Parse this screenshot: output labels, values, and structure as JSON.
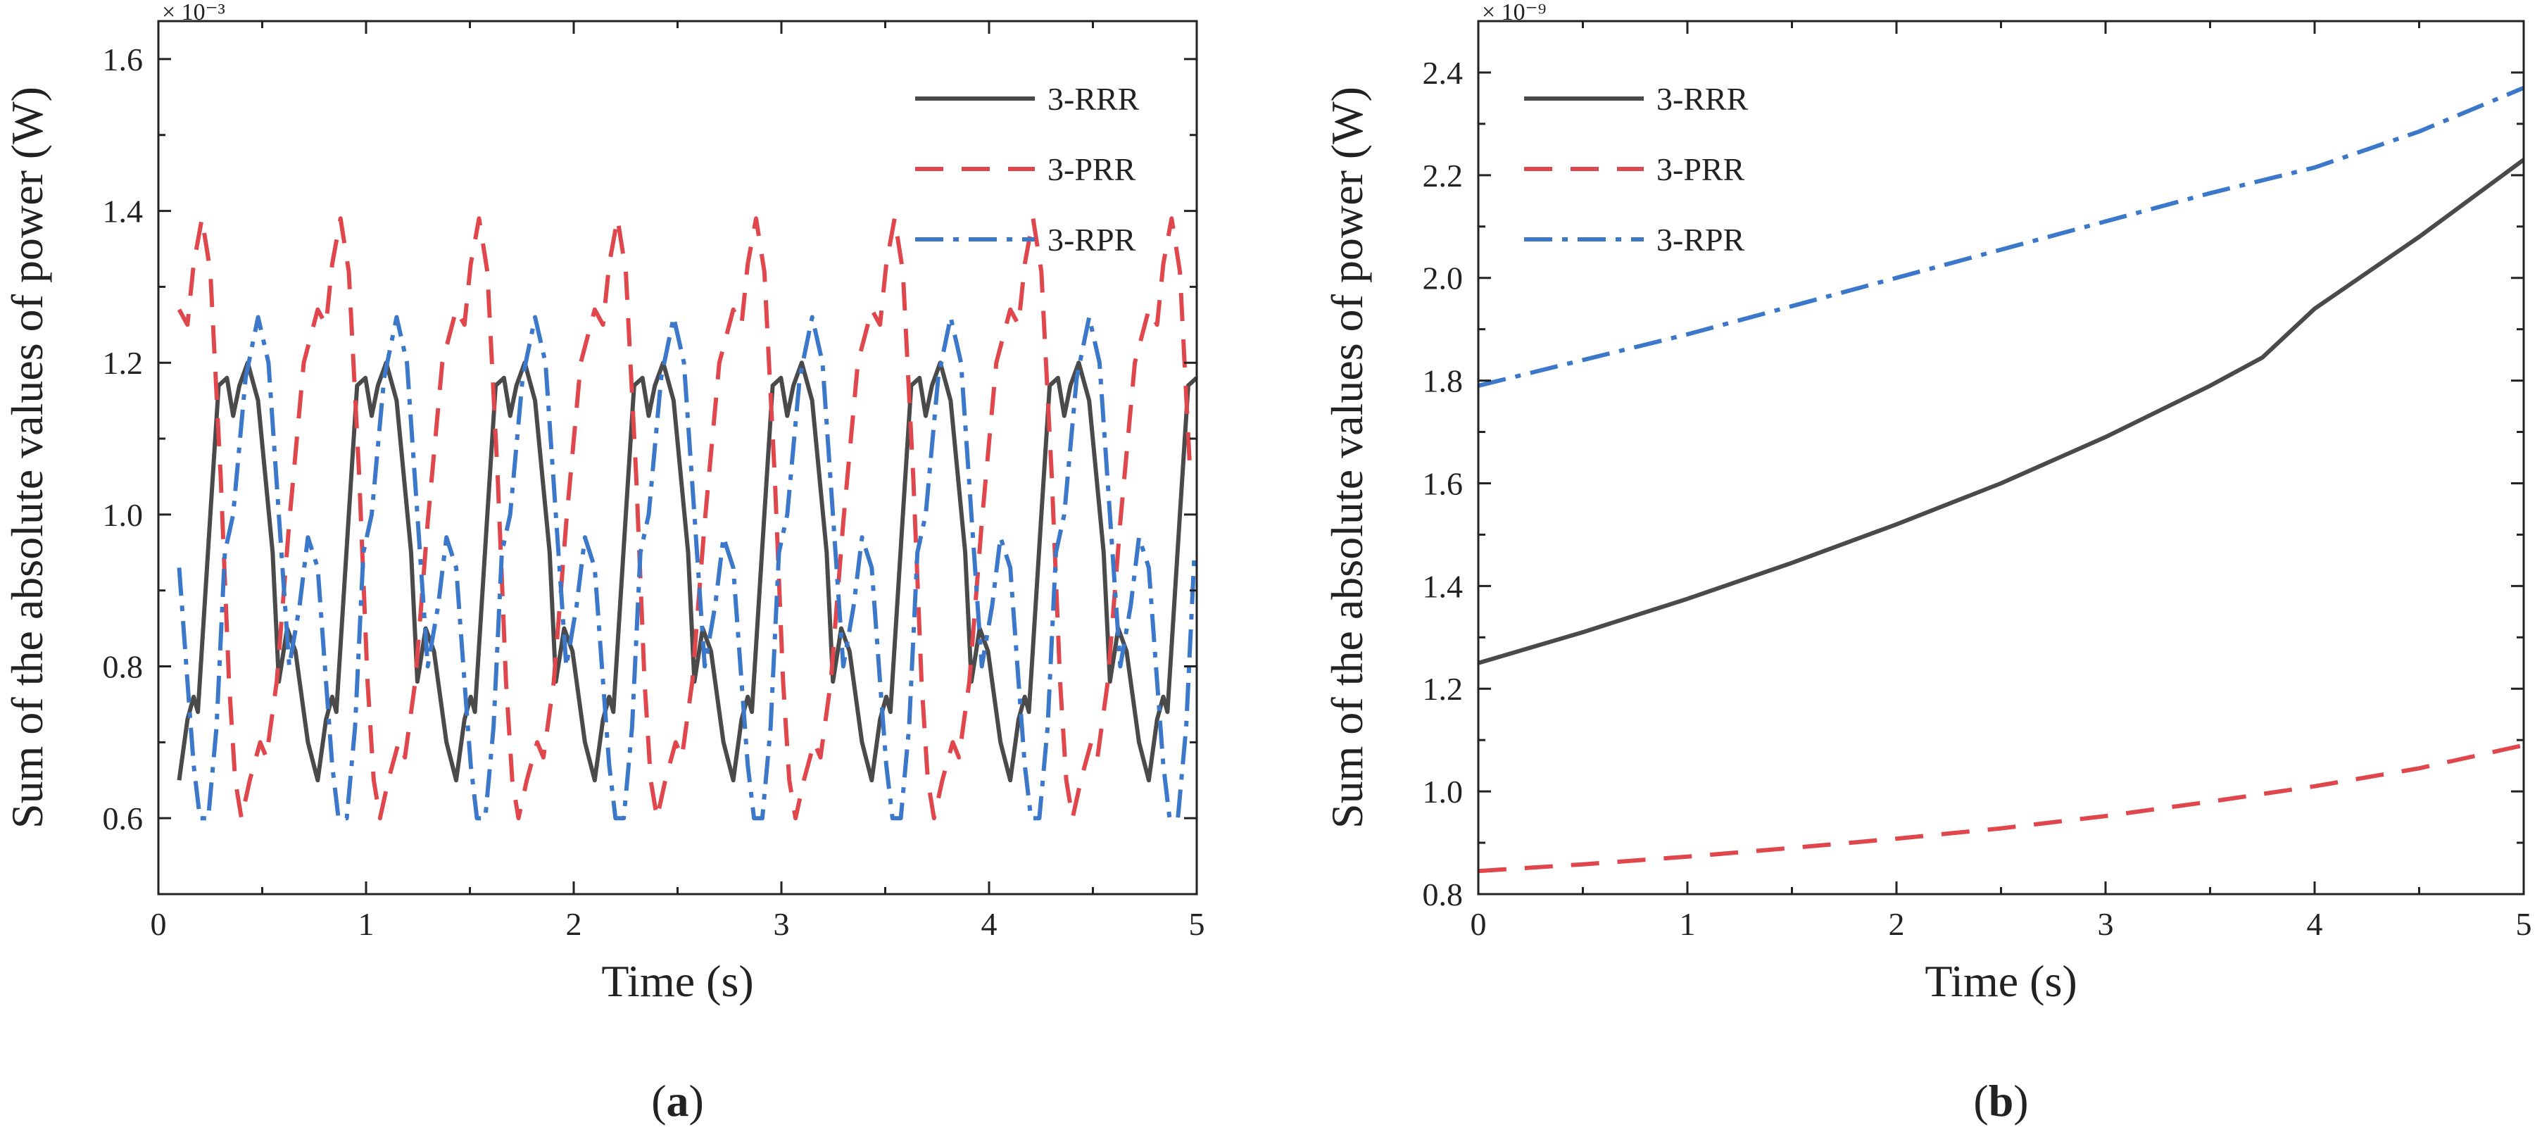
{
  "figure": {
    "panels": [
      {
        "label": "(a)",
        "label_bold": "a"
      },
      {
        "label": "(b)",
        "label_bold": "b"
      }
    ]
  },
  "chart_data": [
    {
      "type": "line",
      "panel": "a",
      "xlabel": "Time (s)",
      "ylabel": "Sum of the absolute values of  power (W)",
      "y_exponent": "× 10⁻³",
      "xlim": [
        0,
        5
      ],
      "ylim": [
        0.5,
        1.65
      ],
      "xticks": [
        0,
        1,
        2,
        3,
        4,
        5
      ],
      "yticks": [
        0.6,
        0.8,
        1.0,
        1.2,
        1.4,
        1.6
      ],
      "ytick_labels": [
        "0.6",
        "0.8",
        "1.0",
        "1.2",
        "1.4",
        "1.6"
      ],
      "legend_position": "top-right",
      "grid": false,
      "series": [
        {
          "name": "3-RRR",
          "color": "#4a4a4a",
          "dash": "solid",
          "period": 0.667,
          "x_start": 0.1,
          "x_end": 5,
          "cycle_points": [
            [
              0,
              0.65
            ],
            [
              0.04,
              0.73
            ],
            [
              0.07,
              0.76
            ],
            [
              0.09,
              0.74
            ],
            [
              0.15,
              1.0
            ],
            [
              0.19,
              1.17
            ],
            [
              0.23,
              1.18
            ],
            [
              0.26,
              1.13
            ],
            [
              0.29,
              1.17
            ],
            [
              0.33,
              1.2
            ],
            [
              0.38,
              1.15
            ],
            [
              0.45,
              0.95
            ],
            [
              0.48,
              0.78
            ],
            [
              0.52,
              0.85
            ],
            [
              0.56,
              0.82
            ],
            [
              0.62,
              0.7
            ],
            [
              0.667,
              0.65
            ]
          ]
        },
        {
          "name": "3-PRR",
          "color": "#e0474c",
          "dash": "long-dash",
          "period": 0.667,
          "x_start": 0.1,
          "x_end": 5,
          "cycle_points": [
            [
              0,
              1.27
            ],
            [
              0.04,
              1.25
            ],
            [
              0.07,
              1.33
            ],
            [
              0.11,
              1.39
            ],
            [
              0.15,
              1.32
            ],
            [
              0.2,
              1.05
            ],
            [
              0.24,
              0.78
            ],
            [
              0.27,
              0.65
            ],
            [
              0.3,
              0.6
            ],
            [
              0.34,
              0.65
            ],
            [
              0.39,
              0.7
            ],
            [
              0.42,
              0.68
            ],
            [
              0.47,
              0.78
            ],
            [
              0.53,
              0.99
            ],
            [
              0.6,
              1.2
            ],
            [
              0.667,
              1.27
            ]
          ]
        },
        {
          "name": "3-RPR",
          "color": "#3b78c9",
          "dash": "dash-dot",
          "period": 0.667,
          "x_start": 0.1,
          "x_end": 5,
          "cycle_points": [
            [
              0,
              0.93
            ],
            [
              0.04,
              0.78
            ],
            [
              0.07,
              0.67
            ],
            [
              0.1,
              0.6
            ],
            [
              0.14,
              0.6
            ],
            [
              0.18,
              0.72
            ],
            [
              0.22,
              0.95
            ],
            [
              0.26,
              1.0
            ],
            [
              0.32,
              1.18
            ],
            [
              0.38,
              1.26
            ],
            [
              0.43,
              1.2
            ],
            [
              0.48,
              1.0
            ],
            [
              0.53,
              0.8
            ],
            [
              0.58,
              0.88
            ],
            [
              0.62,
              0.97
            ],
            [
              0.667,
              0.93
            ]
          ]
        }
      ]
    },
    {
      "type": "line",
      "panel": "b",
      "xlabel": "Time (s)",
      "ylabel": "Sum of the absolute values of  power (W)",
      "y_exponent": "× 10⁻⁹",
      "xlim": [
        0,
        5
      ],
      "ylim": [
        0.8,
        2.5
      ],
      "xticks": [
        0,
        1,
        2,
        3,
        4,
        5
      ],
      "yticks": [
        0.8,
        1.0,
        1.2,
        1.4,
        1.6,
        1.8,
        2.0,
        2.2,
        2.4
      ],
      "ytick_labels": [
        "0.8",
        "1.0",
        "1.2",
        "1.4",
        "1.6",
        "1.8",
        "2.0",
        "2.2",
        "2.4"
      ],
      "legend_position": "top-left",
      "grid": false,
      "series": [
        {
          "name": "3-RRR",
          "color": "#4a4a4a",
          "dash": "solid",
          "points": [
            [
              0,
              1.25
            ],
            [
              0.5,
              1.31
            ],
            [
              1,
              1.375
            ],
            [
              1.5,
              1.445
            ],
            [
              2,
              1.52
            ],
            [
              2.5,
              1.6
            ],
            [
              3,
              1.69
            ],
            [
              3.5,
              1.79
            ],
            [
              3.75,
              1.845
            ],
            [
              4,
              1.94
            ],
            [
              4.5,
              2.08
            ],
            [
              5,
              2.23
            ]
          ]
        },
        {
          "name": "3-PRR",
          "color": "#e0474c",
          "dash": "long-dash",
          "points": [
            [
              0,
              0.845
            ],
            [
              0.5,
              0.858
            ],
            [
              1,
              0.873
            ],
            [
              1.5,
              0.89
            ],
            [
              2,
              0.908
            ],
            [
              2.5,
              0.928
            ],
            [
              3,
              0.952
            ],
            [
              3.5,
              0.98
            ],
            [
              4,
              1.01
            ],
            [
              4.5,
              1.045
            ],
            [
              5,
              1.09
            ]
          ]
        },
        {
          "name": "3-RPR",
          "color": "#3b78c9",
          "dash": "dash-dot",
          "points": [
            [
              0,
              1.79
            ],
            [
              0.5,
              1.84
            ],
            [
              1,
              1.89
            ],
            [
              1.5,
              1.945
            ],
            [
              2,
              2.0
            ],
            [
              2.5,
              2.055
            ],
            [
              3,
              2.11
            ],
            [
              3.5,
              2.165
            ],
            [
              4,
              2.215
            ],
            [
              4.5,
              2.285
            ],
            [
              5,
              2.37
            ]
          ]
        }
      ]
    }
  ]
}
